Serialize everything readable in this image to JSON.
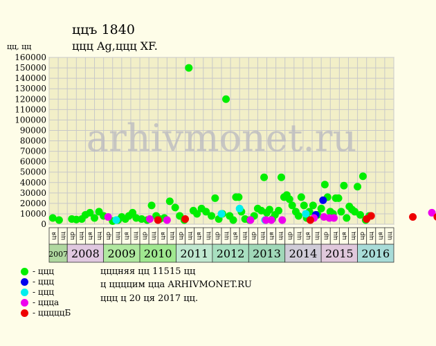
{
  "title_line1": "ццъ 1840",
  "title_line2": "ццц Ag,ццц XF.",
  "y_unit_label": "цц, цц",
  "watermark": "arhivmonet.ru",
  "legend": [
    {
      "label": "- ццц",
      "color": "#00ee00"
    },
    {
      "label": "- ццц",
      "color": "#0000ee"
    },
    {
      "label": "- ццц",
      "color": "#00eeee"
    },
    {
      "label": "- ццца",
      "color": "#ee00ee"
    },
    {
      "label": "- цццццБ",
      "color": "#ee0000"
    }
  ],
  "notes": [
    "цццняя цц 11515 цц",
    "ц ццццим ццa ARHIVMONET.RU",
    "ццц ц 20 ця 2017 цц."
  ],
  "chart_data": {
    "type": "scatter",
    "ylim": [
      0,
      160000
    ],
    "yticks": [
      0,
      10000,
      20000,
      30000,
      40000,
      50000,
      60000,
      70000,
      80000,
      90000,
      100000,
      110000,
      120000,
      130000,
      140000,
      150000,
      160000
    ],
    "grid": true,
    "years": [
      {
        "label": "2007",
        "color": "#b0d8a0",
        "halves": [
          "ця",
          "цц"
        ]
      },
      {
        "label": "2008",
        "color": "#e0c8e0",
        "halves": [
          "цр",
          "цц",
          "ця",
          "цц"
        ]
      },
      {
        "label": "2009",
        "color": "#b0e8a0",
        "halves": [
          "цр",
          "цц",
          "ця",
          "цц"
        ]
      },
      {
        "label": "2010",
        "color": "#a0e890",
        "halves": [
          "цр",
          "цц",
          "ця",
          "цц"
        ]
      },
      {
        "label": "2011",
        "color": "#c0e8d0",
        "halves": [
          "цр",
          "цц",
          "ця",
          "цц"
        ]
      },
      {
        "label": "2012",
        "color": "#a8e0c0",
        "halves": [
          "цр",
          "цц",
          "ця",
          "цц"
        ]
      },
      {
        "label": "2013",
        "color": "#a0d8b8",
        "halves": [
          "цр",
          "цц",
          "ця",
          "цц"
        ]
      },
      {
        "label": "2014",
        "color": "#d0ccd8",
        "halves": [
          "цр",
          "цц",
          "ця",
          "цц"
        ]
      },
      {
        "label": "2015",
        "color": "#e0c8dc",
        "halves": [
          "цр",
          "цц",
          "ця",
          "цц"
        ]
      },
      {
        "label": "2016",
        "color": "#a8dcd8",
        "halves": [
          "цр",
          "цц",
          "ця",
          "цц"
        ]
      }
    ],
    "series": [
      {
        "color": "#00ee00",
        "points": [
          [
            0.4,
            6000
          ],
          [
            1.1,
            4000
          ],
          [
            2.5,
            5000
          ],
          [
            3.0,
            4500
          ],
          [
            3.6,
            5000
          ],
          [
            4.0,
            9000
          ],
          [
            4.5,
            11000
          ],
          [
            5.0,
            6000
          ],
          [
            5.5,
            12000
          ],
          [
            6.0,
            8000
          ],
          [
            7.0,
            3000
          ],
          [
            7.6,
            4000
          ],
          [
            8.0,
            7000
          ],
          [
            8.4,
            5000
          ],
          [
            8.8,
            8000
          ],
          [
            9.2,
            11000
          ],
          [
            9.6,
            6000
          ],
          [
            10.2,
            5000
          ],
          [
            10.8,
            4000
          ],
          [
            11.3,
            18000
          ],
          [
            11.8,
            8000
          ],
          [
            12.2,
            5000
          ],
          [
            12.7,
            6000
          ],
          [
            13.3,
            22000
          ],
          [
            13.9,
            16000
          ],
          [
            14.4,
            8000
          ],
          [
            14.9,
            4000
          ],
          [
            15.4,
            150000
          ],
          [
            15.9,
            13000
          ],
          [
            16.3,
            10000
          ],
          [
            16.8,
            15000
          ],
          [
            17.3,
            12000
          ],
          [
            17.9,
            8000
          ],
          [
            18.3,
            25000
          ],
          [
            18.7,
            5000
          ],
          [
            19.1,
            10000
          ],
          [
            19.5,
            120000
          ],
          [
            19.9,
            8000
          ],
          [
            20.3,
            4000
          ],
          [
            20.6,
            26000
          ],
          [
            20.9,
            26000
          ],
          [
            21.2,
            12000
          ],
          [
            21.6,
            5000
          ],
          [
            22.1,
            4000
          ],
          [
            22.6,
            8000
          ],
          [
            23.0,
            15000
          ],
          [
            23.4,
            13000
          ],
          [
            23.7,
            45000
          ],
          [
            24.0,
            11000
          ],
          [
            24.3,
            14000
          ],
          [
            24.6,
            5000
          ],
          [
            24.9,
            9000
          ],
          [
            25.3,
            13000
          ],
          [
            25.6,
            45000
          ],
          [
            25.9,
            26000
          ],
          [
            26.2,
            28000
          ],
          [
            26.5,
            24000
          ],
          [
            26.8,
            18000
          ],
          [
            27.2,
            12000
          ],
          [
            27.5,
            8000
          ],
          [
            27.8,
            26000
          ],
          [
            28.1,
            18000
          ],
          [
            28.4,
            6000
          ],
          [
            28.7,
            12000
          ],
          [
            29.1,
            18000
          ],
          [
            29.6,
            9000
          ],
          [
            30.0,
            15000
          ],
          [
            30.4,
            38000
          ],
          [
            30.7,
            26000
          ],
          [
            31.0,
            12000
          ],
          [
            31.3,
            10000
          ],
          [
            31.6,
            25000
          ],
          [
            31.9,
            25000
          ],
          [
            32.2,
            12000
          ],
          [
            32.5,
            37000
          ],
          [
            32.8,
            6000
          ],
          [
            33.1,
            17000
          ],
          [
            33.4,
            14000
          ],
          [
            33.7,
            12000
          ],
          [
            34.0,
            36000
          ],
          [
            34.3,
            9000
          ],
          [
            34.6,
            46000
          ],
          [
            34.9,
            4000
          ],
          [
            35.3,
            8000
          ]
        ]
      },
      {
        "color": "#0000ee",
        "points": [
          [
            30.2,
            23000
          ],
          [
            29.4,
            9000
          ]
        ]
      },
      {
        "color": "#00eeee",
        "points": [
          [
            7.4,
            4000
          ],
          [
            19.0,
            10000
          ],
          [
            21.0,
            15000
          ],
          [
            23.8,
            4000
          ],
          [
            28.3,
            10000
          ]
        ]
      },
      {
        "color": "#ee00ee",
        "points": [
          [
            6.5,
            7000
          ],
          [
            11.1,
            5000
          ],
          [
            13.0,
            4000
          ],
          [
            22.2,
            4000
          ],
          [
            23.9,
            4000
          ],
          [
            24.5,
            4000
          ],
          [
            25.7,
            4000
          ],
          [
            29.2,
            6000
          ],
          [
            30.3,
            7000
          ],
          [
            30.9,
            6000
          ],
          [
            31.4,
            6000
          ],
          [
            42.2,
            11000
          ]
        ]
      },
      {
        "color": "#ee0000",
        "points": [
          [
            12.0,
            4000
          ],
          [
            15.0,
            5000
          ],
          [
            28.8,
            4000
          ],
          [
            35.0,
            5000
          ],
          [
            35.5,
            8000
          ],
          [
            40.1,
            7000
          ],
          [
            42.8,
            7000
          ],
          [
            48.0,
            13000
          ],
          [
            48.2,
            7000
          ]
        ]
      }
    ]
  }
}
